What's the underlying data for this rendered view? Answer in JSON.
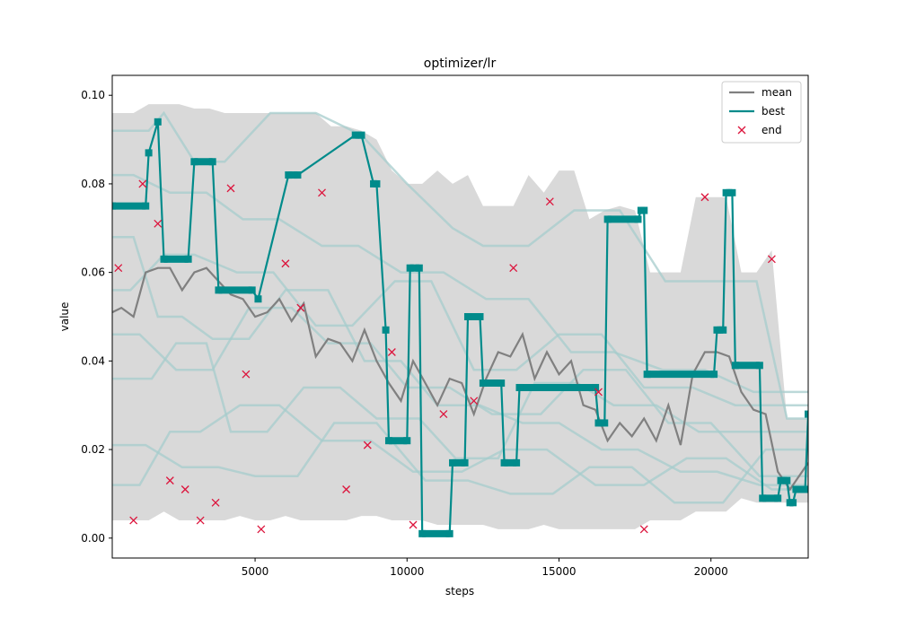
{
  "chart_data": {
    "type": "line",
    "title": "optimizer/lr",
    "xlabel": "steps",
    "ylabel": "value",
    "xlim": [
      300,
      23200
    ],
    "ylim": [
      -0.0045,
      0.1045
    ],
    "x_ticks": [
      5000,
      10000,
      15000,
      20000
    ],
    "x_tick_labels": [
      "5000",
      "10000",
      "15000",
      "20000"
    ],
    "y_ticks": [
      0.0,
      0.02,
      0.04,
      0.06,
      0.08,
      0.1
    ],
    "y_tick_labels": [
      "0.00",
      "0.02",
      "0.04",
      "0.06",
      "0.08",
      "0.10"
    ],
    "grid": false,
    "legend_position": "top-right",
    "colors": {
      "mean": "#808080",
      "best": "#008b8b",
      "end": "#dc143c",
      "band": "#d9d9d9",
      "runs": "#a6cccc"
    },
    "legend": {
      "mean": "mean",
      "best": "best",
      "end": "end"
    },
    "band": {
      "x": [
        300,
        500,
        1000,
        1500,
        2000,
        2500,
        3000,
        3500,
        4000,
        4500,
        5000,
        5500,
        6000,
        6500,
        7000,
        7500,
        8000,
        8500,
        9000,
        9500,
        10000,
        10500,
        11000,
        11500,
        12000,
        12500,
        13000,
        13500,
        14000,
        14500,
        15000,
        15500,
        16000,
        16500,
        17000,
        17500,
        18000,
        18500,
        19000,
        19500,
        20000,
        20500,
        21000,
        21500,
        22000,
        22500,
        23200
      ],
      "upper": [
        0.096,
        0.096,
        0.096,
        0.098,
        0.098,
        0.098,
        0.097,
        0.097,
        0.096,
        0.096,
        0.096,
        0.096,
        0.096,
        0.096,
        0.096,
        0.093,
        0.093,
        0.092,
        0.09,
        0.083,
        0.08,
        0.08,
        0.083,
        0.08,
        0.082,
        0.075,
        0.075,
        0.075,
        0.082,
        0.078,
        0.083,
        0.083,
        0.072,
        0.074,
        0.075,
        0.074,
        0.06,
        0.06,
        0.06,
        0.077,
        0.077,
        0.077,
        0.06,
        0.06,
        0.065,
        0.027,
        0.027
      ],
      "lower": [
        0.004,
        0.004,
        0.004,
        0.004,
        0.006,
        0.004,
        0.004,
        0.004,
        0.004,
        0.005,
        0.004,
        0.004,
        0.005,
        0.004,
        0.004,
        0.004,
        0.004,
        0.005,
        0.005,
        0.004,
        0.004,
        0.004,
        0.003,
        0.003,
        0.003,
        0.003,
        0.002,
        0.002,
        0.002,
        0.003,
        0.002,
        0.002,
        0.002,
        0.002,
        0.002,
        0.002,
        0.004,
        0.004,
        0.004,
        0.006,
        0.006,
        0.006,
        0.009,
        0.008,
        0.008,
        0.008,
        0.008
      ]
    },
    "runs": [
      {
        "x": [
          300,
          1500,
          2000,
          3000,
          4000,
          5500,
          7000,
          8500,
          10000,
          11500,
          12500,
          14000,
          15500,
          17000,
          18500,
          20000,
          21500,
          22500,
          23200
        ],
        "y": [
          0.092,
          0.092,
          0.096,
          0.085,
          0.085,
          0.096,
          0.096,
          0.091,
          0.08,
          0.07,
          0.066,
          0.066,
          0.074,
          0.074,
          0.058,
          0.058,
          0.058,
          0.027,
          0.027
        ]
      },
      {
        "x": [
          300,
          1200,
          2200,
          3200,
          4500,
          5800,
          7200,
          8800,
          10200,
          11800,
          13200,
          14600,
          16200,
          17800,
          19200,
          20500,
          22000,
          23200
        ],
        "y": [
          0.012,
          0.012,
          0.024,
          0.024,
          0.03,
          0.03,
          0.022,
          0.022,
          0.015,
          0.015,
          0.02,
          0.02,
          0.012,
          0.012,
          0.018,
          0.018,
          0.011,
          0.011
        ]
      },
      {
        "x": [
          300,
          1000,
          1800,
          2600,
          3600,
          4800,
          6000,
          7400,
          8600,
          9800,
          11000,
          12400,
          13800,
          15000,
          16400,
          17600,
          19000,
          20200,
          21600,
          23200
        ],
        "y": [
          0.068,
          0.068,
          0.05,
          0.05,
          0.045,
          0.045,
          0.056,
          0.056,
          0.04,
          0.04,
          0.03,
          0.03,
          0.026,
          0.026,
          0.02,
          0.02,
          0.015,
          0.015,
          0.012,
          0.012
        ]
      },
      {
        "x": [
          300,
          1600,
          2400,
          3400,
          4200,
          5400,
          6600,
          7800,
          9000,
          10400,
          11600,
          13000,
          14200,
          15600,
          16800,
          18200,
          19600,
          21000,
          23200
        ],
        "y": [
          0.036,
          0.036,
          0.044,
          0.044,
          0.024,
          0.024,
          0.034,
          0.034,
          0.027,
          0.027,
          0.018,
          0.018,
          0.035,
          0.035,
          0.03,
          0.03,
          0.024,
          0.024,
          0.024
        ]
      },
      {
        "x": [
          300,
          900,
          2000,
          3000,
          4400,
          5600,
          7000,
          8200,
          9600,
          10800,
          12200,
          13600,
          15000,
          16400,
          17800,
          19400,
          20800,
          23200
        ],
        "y": [
          0.056,
          0.056,
          0.064,
          0.064,
          0.06,
          0.06,
          0.048,
          0.048,
          0.058,
          0.058,
          0.038,
          0.038,
          0.046,
          0.046,
          0.034,
          0.034,
          0.03,
          0.03
        ]
      },
      {
        "x": [
          300,
          1400,
          2600,
          3800,
          5000,
          6400,
          7600,
          9000,
          10600,
          12000,
          13400,
          14800,
          16000,
          17400,
          18800,
          20400,
          21800,
          23200
        ],
        "y": [
          0.021,
          0.021,
          0.016,
          0.016,
          0.014,
          0.014,
          0.026,
          0.026,
          0.013,
          0.013,
          0.01,
          0.01,
          0.016,
          0.016,
          0.008,
          0.008,
          0.02,
          0.02
        ]
      },
      {
        "x": [
          300,
          1000,
          2200,
          3400,
          4600,
          5800,
          7200,
          8400,
          9800,
          11200,
          12600,
          14000,
          15400,
          16800,
          18400,
          19800,
          21400,
          23200
        ],
        "y": [
          0.082,
          0.082,
          0.078,
          0.078,
          0.072,
          0.072,
          0.066,
          0.066,
          0.06,
          0.06,
          0.054,
          0.054,
          0.042,
          0.042,
          0.038,
          0.038,
          0.033,
          0.033
        ]
      },
      {
        "x": [
          300,
          1200,
          2400,
          3600,
          4800,
          6200,
          7400,
          8800,
          10000,
          11400,
          12800,
          14400,
          15800,
          17200,
          18600,
          20000,
          21600,
          23200
        ],
        "y": [
          0.046,
          0.046,
          0.038,
          0.038,
          0.052,
          0.052,
          0.044,
          0.044,
          0.034,
          0.034,
          0.028,
          0.028,
          0.038,
          0.038,
          0.026,
          0.026,
          0.014,
          0.014
        ]
      }
    ],
    "mean": {
      "x": [
        300,
        600,
        1000,
        1400,
        1800,
        2200,
        2600,
        3000,
        3400,
        3800,
        4200,
        4600,
        5000,
        5400,
        5800,
        6200,
        6600,
        7000,
        7400,
        7800,
        8200,
        8600,
        9000,
        9400,
        9800,
        10200,
        10600,
        11000,
        11400,
        11800,
        12200,
        12600,
        13000,
        13400,
        13800,
        14200,
        14600,
        15000,
        15400,
        15800,
        16200,
        16600,
        17000,
        17400,
        17800,
        18200,
        18600,
        19000,
        19400,
        19800,
        20200,
        20600,
        21000,
        21400,
        21800,
        22200,
        22600,
        23200
      ],
      "y": [
        0.051,
        0.052,
        0.05,
        0.06,
        0.061,
        0.061,
        0.056,
        0.06,
        0.061,
        0.058,
        0.055,
        0.054,
        0.05,
        0.051,
        0.054,
        0.049,
        0.053,
        0.041,
        0.045,
        0.044,
        0.04,
        0.047,
        0.04,
        0.035,
        0.031,
        0.04,
        0.035,
        0.03,
        0.036,
        0.035,
        0.028,
        0.036,
        0.042,
        0.041,
        0.046,
        0.036,
        0.042,
        0.037,
        0.04,
        0.03,
        0.029,
        0.022,
        0.026,
        0.023,
        0.027,
        0.022,
        0.03,
        0.021,
        0.037,
        0.042,
        0.042,
        0.041,
        0.033,
        0.029,
        0.028,
        0.015,
        0.011,
        0.017
      ]
    },
    "best": {
      "x": [
        300,
        1400,
        1500,
        1800,
        2000,
        2800,
        3000,
        3600,
        3800,
        4900,
        5100,
        6100,
        6400,
        8300,
        8500,
        8900,
        9000,
        9300,
        9400,
        10000,
        10100,
        10400,
        10500,
        11400,
        11500,
        11900,
        12000,
        12400,
        12500,
        13100,
        13200,
        13600,
        13700,
        16200,
        16300,
        16500,
        16600,
        17600,
        17700,
        17800,
        17900,
        20100,
        20200,
        20400,
        20500,
        20700,
        20800,
        21600,
        21700,
        22200,
        22300,
        22500,
        22600,
        22700,
        22800,
        23100,
        23200
      ],
      "y": [
        0.075,
        0.075,
        0.087,
        0.094,
        0.063,
        0.063,
        0.085,
        0.085,
        0.056,
        0.056,
        0.054,
        0.082,
        0.082,
        0.091,
        0.091,
        0.08,
        0.08,
        0.047,
        0.022,
        0.022,
        0.061,
        0.061,
        0.001,
        0.001,
        0.017,
        0.017,
        0.05,
        0.05,
        0.035,
        0.035,
        0.017,
        0.017,
        0.034,
        0.034,
        0.026,
        0.026,
        0.072,
        0.072,
        0.074,
        0.074,
        0.037,
        0.037,
        0.047,
        0.047,
        0.078,
        0.078,
        0.039,
        0.039,
        0.009,
        0.009,
        0.013,
        0.013,
        0.008,
        0.008,
        0.011,
        0.011,
        0.028
      ]
    },
    "end": {
      "x": [
        500,
        1000,
        1300,
        1800,
        2200,
        2700,
        3200,
        3700,
        4200,
        4700,
        5200,
        6000,
        6500,
        7200,
        8000,
        8700,
        9500,
        10200,
        11200,
        12200,
        13500,
        14700,
        16300,
        17800,
        19800,
        22000
      ],
      "y": [
        0.061,
        0.004,
        0.08,
        0.071,
        0.013,
        0.011,
        0.004,
        0.008,
        0.079,
        0.037,
        0.002,
        0.062,
        0.052,
        0.078,
        0.011,
        0.021,
        0.042,
        0.003,
        0.028,
        0.031,
        0.061,
        0.076,
        0.033,
        0.002,
        0.077,
        0.063
      ]
    }
  }
}
